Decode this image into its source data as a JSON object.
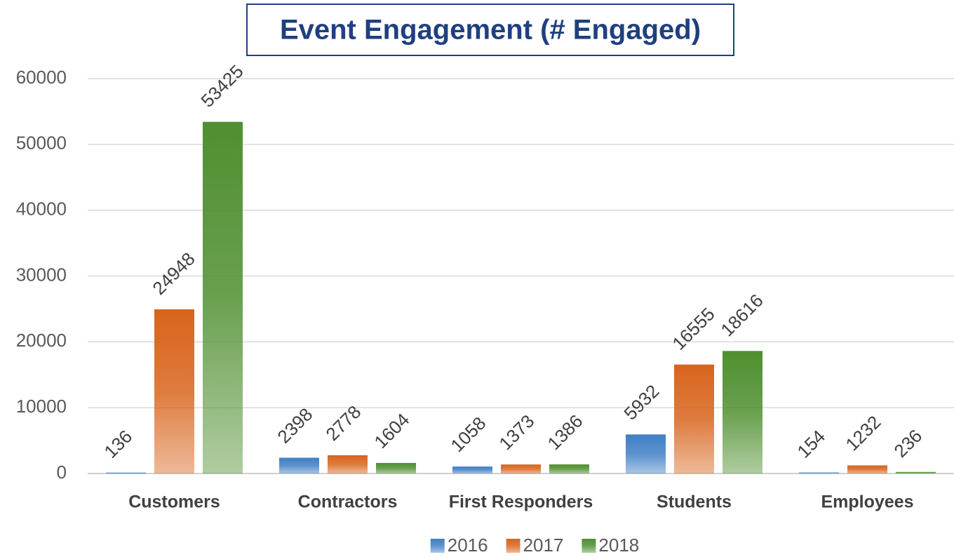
{
  "chart_data": {
    "type": "bar",
    "title": "Event Engagement (# Engaged)",
    "categories": [
      "Customers",
      "Contractors",
      "First Responders",
      "Students",
      "Employees"
    ],
    "series": [
      {
        "name": "2016",
        "color": "#3f7fc4",
        "values": [
          136,
          2398,
          1058,
          5932,
          154
        ]
      },
      {
        "name": "2017",
        "color": "#d8641c",
        "values": [
          24948,
          2778,
          1373,
          16555,
          1232
        ]
      },
      {
        "name": "2018",
        "color": "#4f8f30",
        "values": [
          53425,
          1604,
          1386,
          18616,
          236
        ]
      }
    ],
    "ylim": [
      0,
      60000
    ],
    "yticks": [
      0,
      10000,
      20000,
      30000,
      40000,
      50000,
      60000
    ],
    "grid": true,
    "legend": "bottom"
  }
}
